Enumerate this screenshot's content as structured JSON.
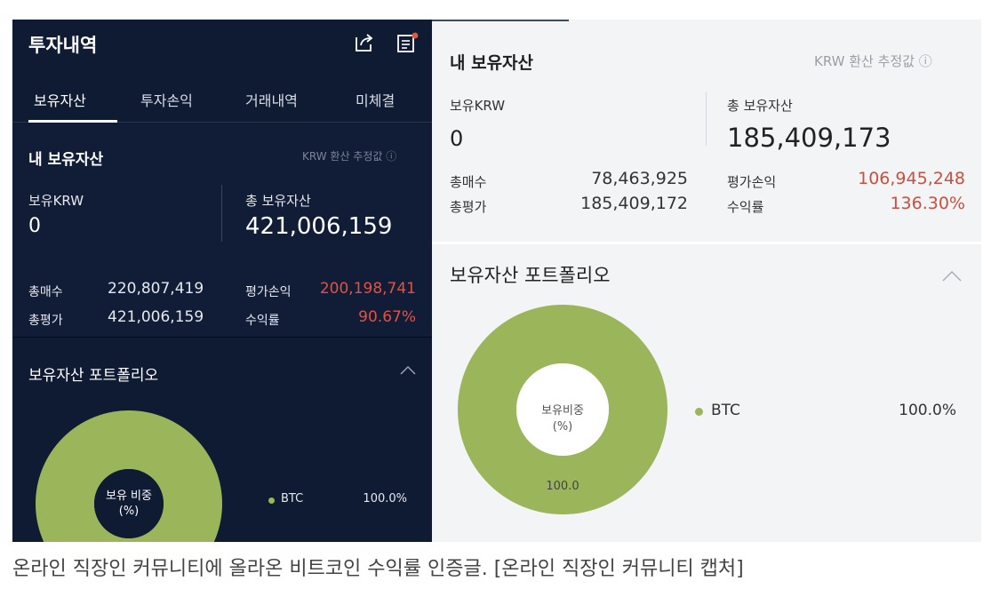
{
  "left_panel": {
    "title": "투자내역",
    "tabs": [
      {
        "label": "보유자산",
        "active": true
      },
      {
        "label": "투자손익",
        "active": false
      },
      {
        "label": "거래내역",
        "active": false
      },
      {
        "label": "미체결",
        "active": false
      }
    ],
    "my_assets": {
      "title": "내 보유자산",
      "krw_note": "KRW 환산 추정값 ⓘ",
      "krw_label": "보유KRW",
      "krw_value": "0",
      "total_label": "총 보유자산",
      "total_value": "421,006,159",
      "total_buy_label": "총매수",
      "total_buy_value": "220,807,419",
      "total_eval_label": "총평가",
      "total_eval_value": "421,006,159",
      "pnl_label": "평가손익",
      "pnl_value": "200,198,741",
      "return_label": "수익률",
      "return_value": "90.67%"
    },
    "portfolio": {
      "title": "보유자산 포트폴리오",
      "donut_label_1": "보유 비중",
      "donut_label_2": "(%)",
      "legend_name": "BTC",
      "legend_pct": "100.0%",
      "share": 100.0
    }
  },
  "right_panel": {
    "my_assets": {
      "title": "내 보유자산",
      "krw_note": "KRW 환산 추정값 ⓘ",
      "krw_label": "보유KRW",
      "krw_value": "0",
      "total_label": "총 보유자산",
      "total_value": "185,409,173",
      "total_buy_label": "총매수",
      "total_buy_value": "78,463,925",
      "total_eval_label": "총평가",
      "total_eval_value": "185,409,172",
      "pnl_label": "평가손익",
      "pnl_value": "106,945,248",
      "return_label": "수익률",
      "return_value": "136.30%"
    },
    "portfolio": {
      "title": "보유자산 포트폴리오",
      "donut_label_1": "보유비중",
      "donut_label_2": "(%)",
      "donut_value": "100.0",
      "legend_name": "BTC",
      "legend_pct": "100.0%",
      "share": 100.0
    }
  },
  "caption": "온라인 직장인 커뮤니티에 올라온 비트코인 수익률 인증글. [온라인 직장인 커뮤니티 캡처]",
  "colors": {
    "left_bg": "#0f1b33",
    "right_bg": "#f3f4f6",
    "loss_gain_red": "#e05246",
    "donut_green": "#9bb55a"
  },
  "icons": {
    "share": "share-icon",
    "notes": "notes-icon",
    "chevron_up": "chevron-up-icon",
    "info": "info-icon"
  }
}
